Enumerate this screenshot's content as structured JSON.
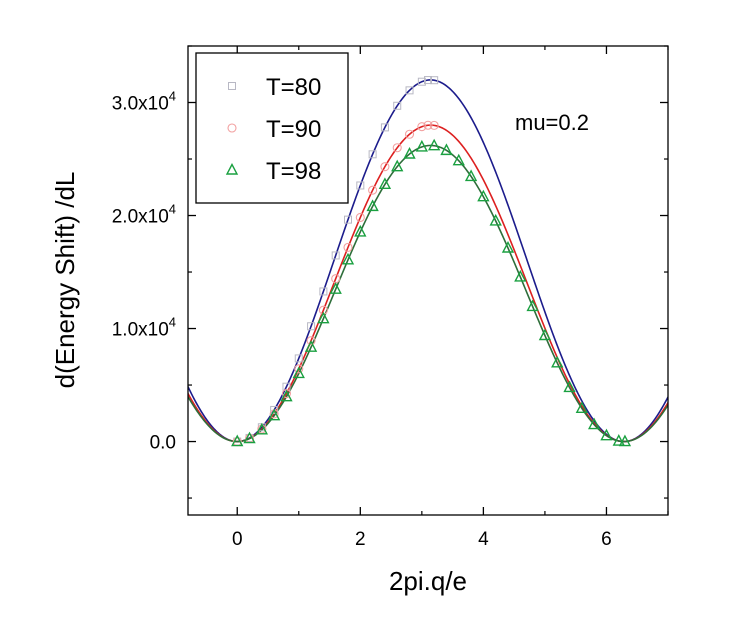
{
  "chart_data": {
    "type": "line",
    "title": "",
    "xlabel": "2pi.q/e",
    "ylabel": "d(Energy Shift) /dL",
    "xlim": [
      -0.8,
      7.0
    ],
    "ylim": [
      -6500,
      35000
    ],
    "x_ticks": [
      0,
      2,
      4,
      6
    ],
    "x_tick_labels": [
      "0",
      "2",
      "4",
      "6"
    ],
    "y_ticks": [
      0,
      10000,
      20000,
      30000
    ],
    "y_tick_labels": [
      {
        "base": "0.0",
        "exp": ""
      },
      {
        "base": "1.0x10",
        "exp": "4"
      },
      {
        "base": "2.0x10",
        "exp": "4"
      },
      {
        "base": "3.0x10",
        "exp": "4"
      }
    ],
    "annotation": "mu=0.2",
    "legend_position": "top-left",
    "series": [
      {
        "name": "T=80",
        "marker": "square",
        "marker_color": "#b8b8c4",
        "line_color": "#1c1c8c",
        "amplitude": 32000,
        "points_x": [
          0,
          0.2,
          0.4,
          0.6,
          0.8,
          1.0,
          1.2,
          1.4,
          1.6,
          1.8,
          2.0,
          2.2,
          2.4,
          2.6,
          2.8,
          3.0,
          3.1,
          3.2
        ]
      },
      {
        "name": "T=90",
        "marker": "circle",
        "marker_color": "#f2a0a0",
        "line_color": "#dd2020",
        "amplitude": 28000,
        "points_x": [
          0,
          0.2,
          0.4,
          0.6,
          0.8,
          1.0,
          1.2,
          1.4,
          1.6,
          1.8,
          2.0,
          2.2,
          2.4,
          2.6,
          2.8,
          3.0,
          3.1,
          3.2
        ]
      },
      {
        "name": "T=98",
        "marker": "triangle",
        "marker_color": "#1aa040",
        "line_color": "#2e6e3a",
        "amplitude": 26200,
        "points_x": [
          0,
          0.2,
          0.4,
          0.6,
          0.8,
          1.0,
          1.2,
          1.4,
          1.6,
          1.8,
          2.0,
          2.2,
          2.4,
          2.6,
          2.8,
          3.0,
          3.2,
          3.4,
          3.6,
          3.8,
          4.0,
          4.2,
          4.4,
          4.6,
          4.8,
          5.0,
          5.2,
          5.4,
          5.6,
          5.8,
          6.0,
          6.2,
          6.3
        ]
      }
    ]
  }
}
